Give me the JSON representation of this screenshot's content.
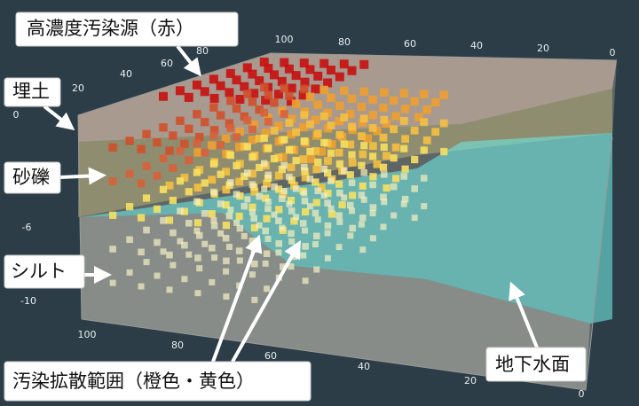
{
  "labels": {
    "source": "高濃度汚染源（赤）",
    "fill": "埋土",
    "gravel": "砂礫",
    "silt": "シルト",
    "spread": "汚染拡散範囲（橙色・黄色）",
    "water_table": "地下水面"
  },
  "axes": {
    "back_x": [
      "100",
      "80",
      "60",
      "40",
      "20",
      "0"
    ],
    "left_y": [
      "80",
      "60",
      "40",
      "20"
    ],
    "depth": [
      "0",
      "-6",
      "-10"
    ],
    "front_x": [
      "100",
      "80",
      "60",
      "40",
      "20",
      "0"
    ]
  }
}
